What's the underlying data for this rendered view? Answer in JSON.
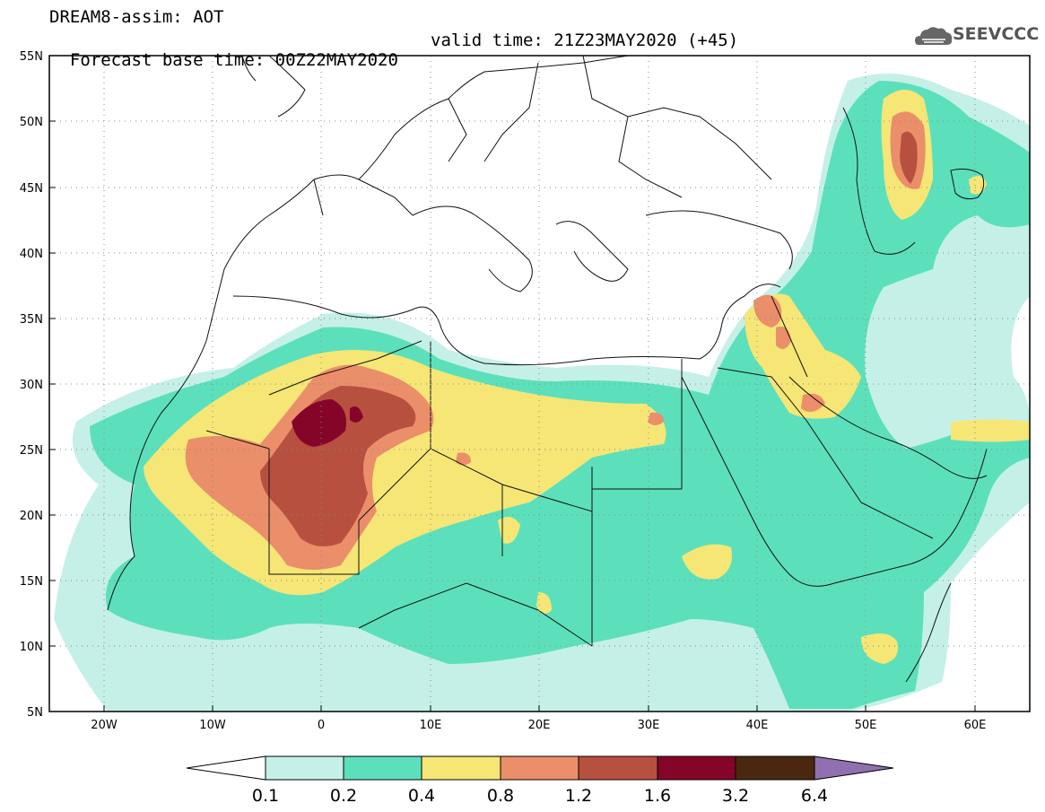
{
  "header": {
    "title_line1": "DREAM8-assim: AOT",
    "title_line2": "Forecast base time: 00Z22MAY2020",
    "valid_time": "valid time: 21Z23MAY2020 (+45)",
    "logo_text": "SEEVCCC",
    "logo_icon": "cloud-icon"
  },
  "map": {
    "lon_range": [
      -25,
      65
    ],
    "lat_range": [
      5,
      55
    ],
    "lat_labels": [
      "55N",
      "50N",
      "45N",
      "40N",
      "35N",
      "30N",
      "25N",
      "20N",
      "15N",
      "10N",
      "5N"
    ],
    "lon_labels": [
      "20W",
      "10W",
      "0",
      "10E",
      "20E",
      "30E",
      "40E",
      "50E",
      "60E"
    ],
    "grid": "dotted"
  },
  "colorbar": {
    "labels": [
      "0.1",
      "0.2",
      "0.4",
      "0.8",
      "1.2",
      "1.6",
      "3.2",
      "6.4"
    ],
    "colors": [
      "#c5f0e8",
      "#5ce0bc",
      "#f5e676",
      "#eb8e6a",
      "#b85040",
      "#850528",
      "#4a2810"
    ],
    "over_color": "#9070b0",
    "under_color": "#ffffff"
  }
}
